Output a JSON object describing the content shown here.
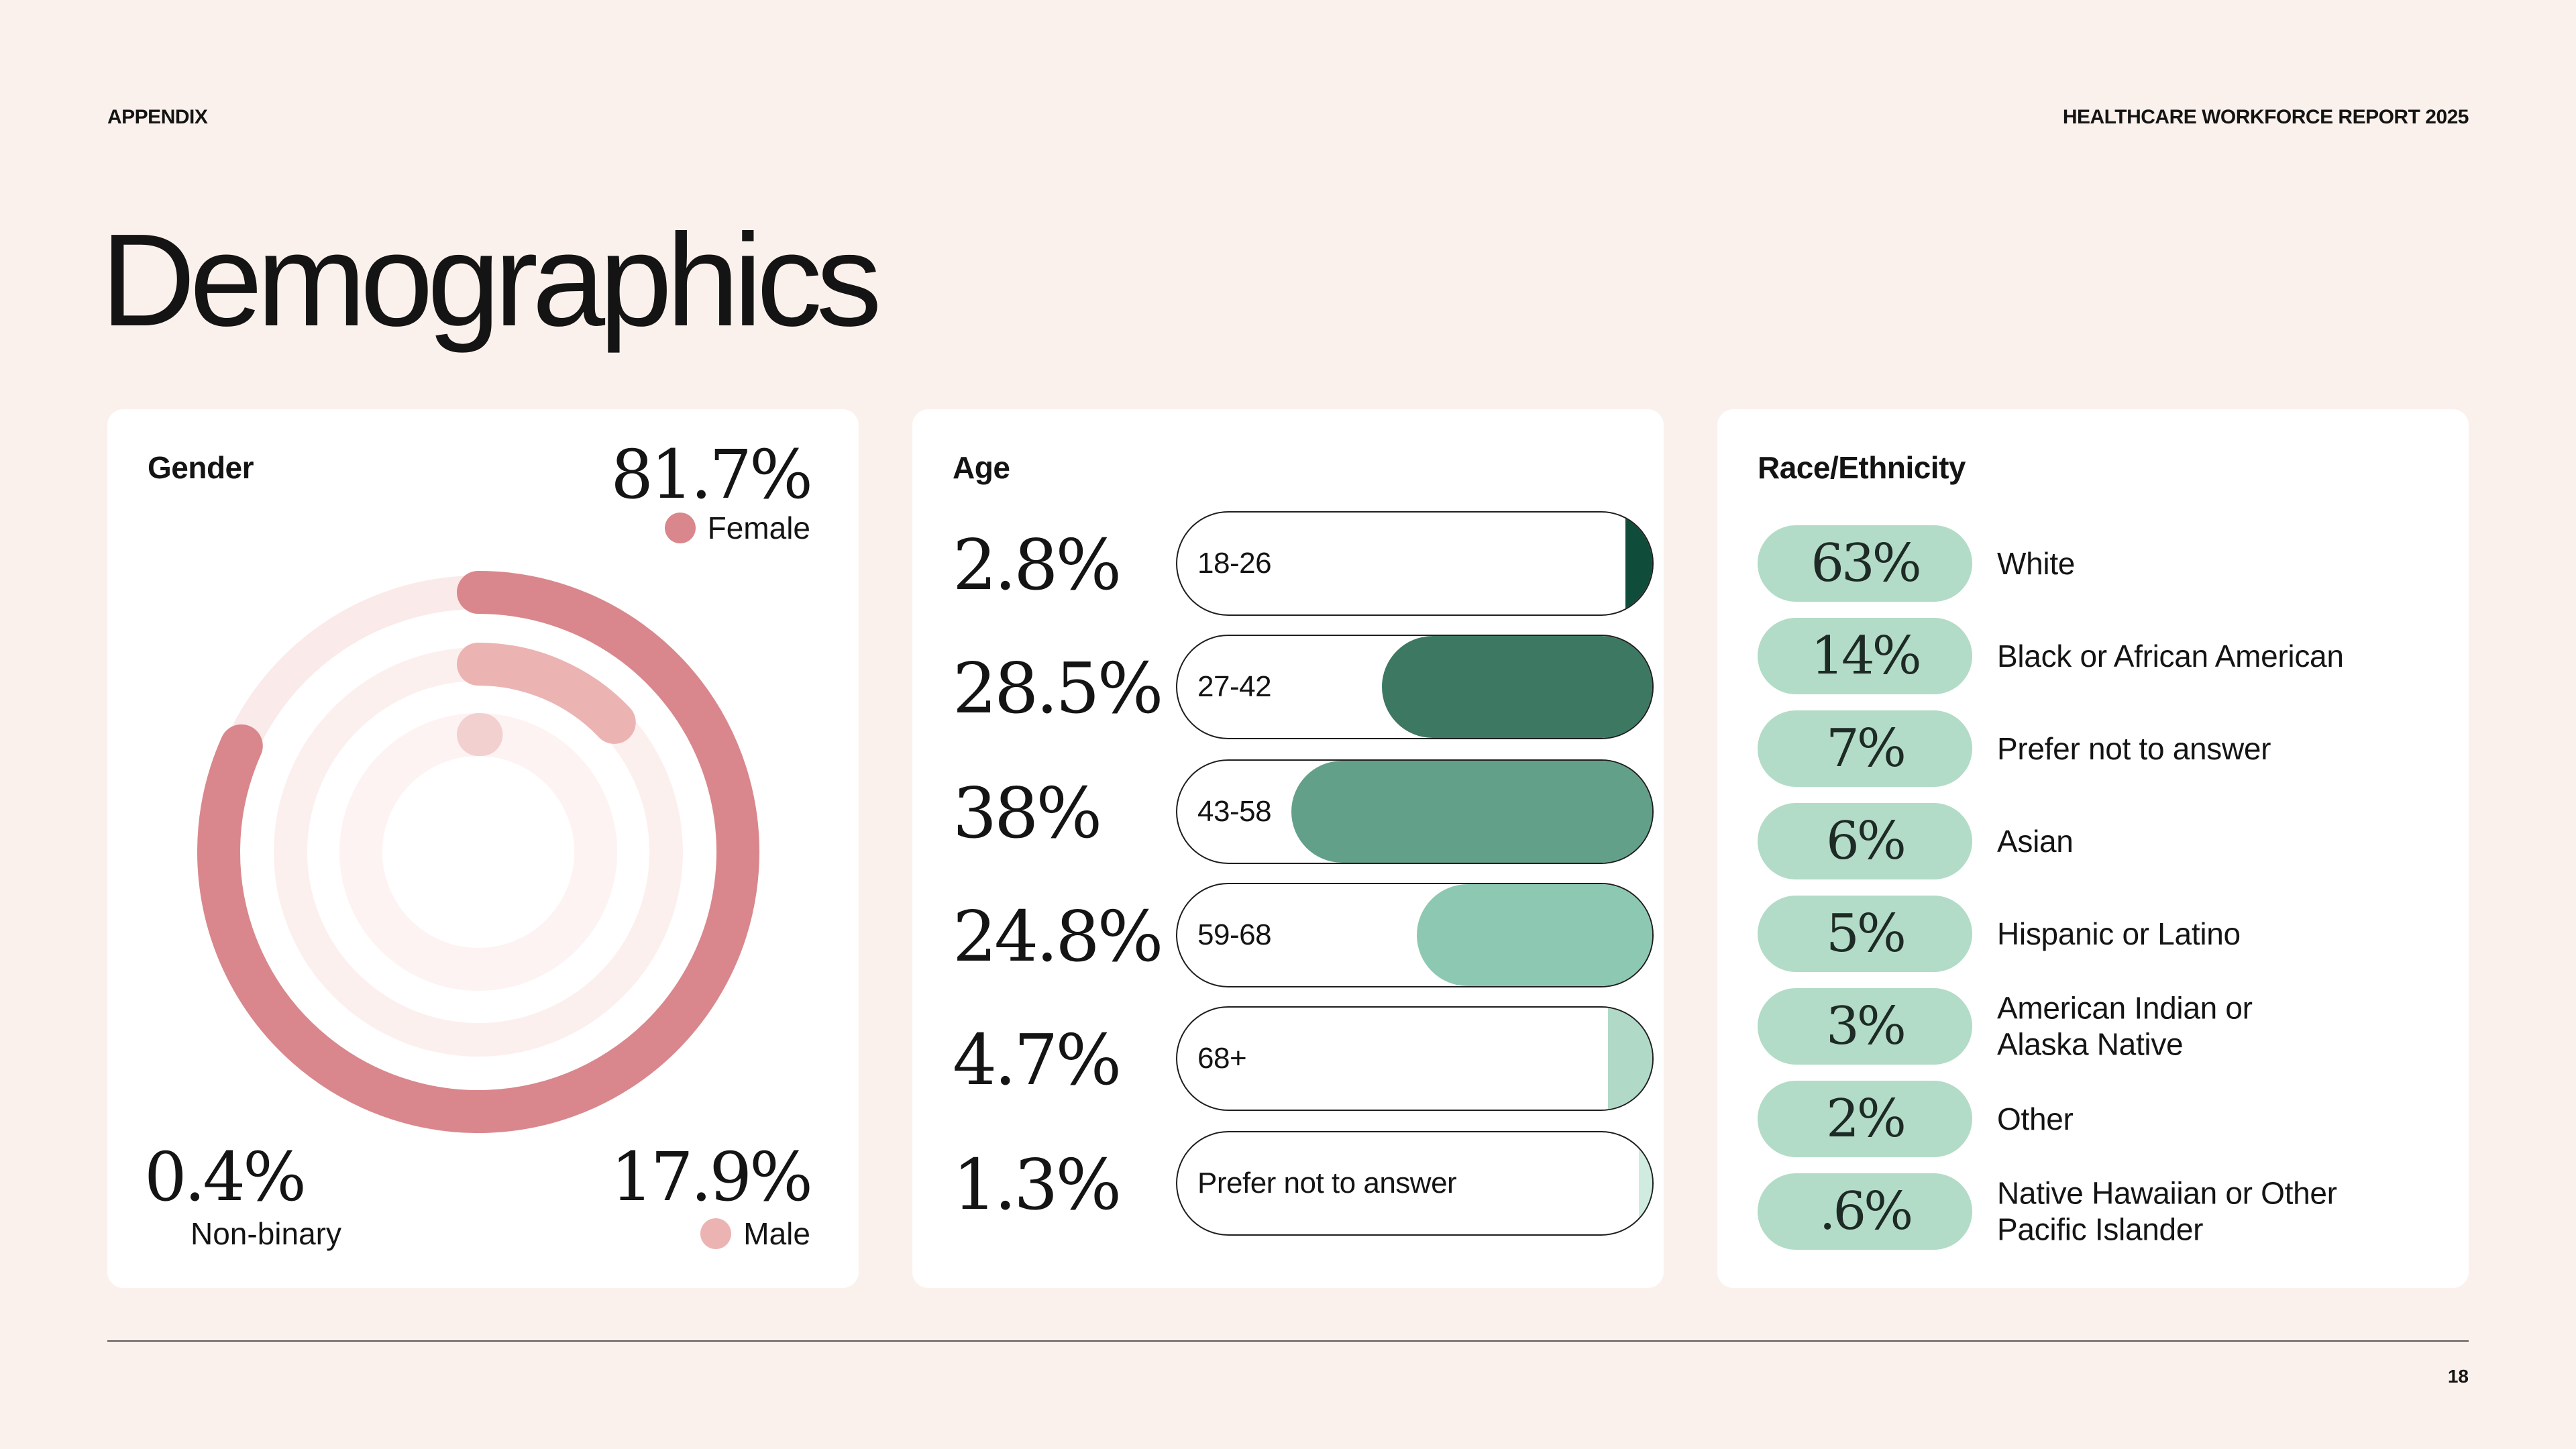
{
  "header": {
    "section": "APPENDIX",
    "report": "HEALTHCARE WORKFORCE REPORT 2025"
  },
  "title": "Demographics",
  "colors": {
    "female": "#d9878c",
    "male": "#ebb4b3",
    "nonbinary": "#f2d0d0",
    "track_outer": "#faeaea",
    "track_mid": "#fcf0ef",
    "track_inner": "#fdf3f2",
    "age": [
      "#0f4d3a",
      "#3d7862",
      "#63a08a",
      "#8dc9b2",
      "#b1d9c8",
      "#d0ebe0"
    ],
    "race_pill": "#b2dcc7"
  },
  "gender": {
    "title": "Gender",
    "female": {
      "pct": "81.7%",
      "label": "Female",
      "value": 81.7
    },
    "male": {
      "pct": "17.9%",
      "label": "Male",
      "value": 17.9
    },
    "nonbinary": {
      "pct": "0.4%",
      "label": "Non-binary",
      "value": 0.4
    }
  },
  "age": {
    "title": "Age",
    "rows": [
      {
        "pct": "2.8%",
        "label": "18-26",
        "value": 2.8
      },
      {
        "pct": "28.5%",
        "label": "27-42",
        "value": 28.5
      },
      {
        "pct": "38%",
        "label": "43-58",
        "value": 38
      },
      {
        "pct": "24.8%",
        "label": "59-68",
        "value": 24.8
      },
      {
        "pct": "4.7%",
        "label": "68+",
        "value": 4.7
      },
      {
        "pct": "1.3%",
        "label": "Prefer not to answer",
        "value": 1.3
      }
    ]
  },
  "race": {
    "title": "Race/Ethnicity",
    "rows": [
      {
        "pct": "63%",
        "label": "White"
      },
      {
        "pct": "14%",
        "label": "Black or African American"
      },
      {
        "pct": "7%",
        "label": "Prefer not to answer"
      },
      {
        "pct": "6%",
        "label": "Asian"
      },
      {
        "pct": "5%",
        "label": "Hispanic or Latino"
      },
      {
        "pct": "3%",
        "label": "American Indian or\nAlaska Native"
      },
      {
        "pct": "2%",
        "label": "Other"
      },
      {
        "pct": ".6%",
        "label": "Native Hawaiian or Other\nPacific Islander"
      }
    ]
  },
  "chart_data": [
    {
      "type": "pie",
      "title": "Gender",
      "categories": [
        "Female",
        "Male",
        "Non-binary"
      ],
      "values": [
        81.7,
        17.9,
        0.4
      ]
    },
    {
      "type": "bar",
      "title": "Age",
      "categories": [
        "18-26",
        "27-42",
        "43-58",
        "59-68",
        "68+",
        "Prefer not to answer"
      ],
      "values": [
        2.8,
        28.5,
        38,
        24.8,
        4.7,
        1.3
      ]
    },
    {
      "type": "table",
      "title": "Race/Ethnicity",
      "categories": [
        "White",
        "Black or African American",
        "Prefer not to answer",
        "Asian",
        "Hispanic or Latino",
        "American Indian or Alaska Native",
        "Other",
        "Native Hawaiian or Other Pacific Islander"
      ],
      "values": [
        63,
        14,
        7,
        6,
        5,
        3,
        2,
        0.6
      ]
    }
  ],
  "footer": {
    "page": "18"
  }
}
